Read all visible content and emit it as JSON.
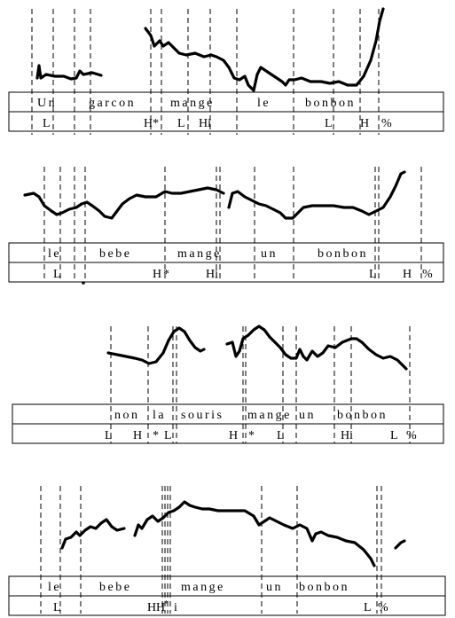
{
  "panels": [
    {
      "words": [
        "Un",
        "garcon",
        "mange",
        "le",
        "bonbon"
      ],
      "tones": [
        "L",
        "H*",
        "L",
        "Hi",
        "L",
        "H",
        "%"
      ]
    },
    {
      "words": [
        "le",
        "bebe",
        "mange",
        "un",
        "bonbon"
      ],
      "tones": [
        "L",
        "H",
        "*",
        "Hi",
        "L",
        "H",
        "%"
      ]
    },
    {
      "words": [
        "non",
        "la",
        "souris",
        "mange",
        "un",
        "bonbon"
      ],
      "tones": [
        "L",
        "H",
        "*",
        "L",
        "H",
        "*",
        "L",
        "Hi",
        "L",
        "%"
      ]
    },
    {
      "words": [
        "le",
        "bebe",
        "mange",
        "un",
        "bonbon"
      ],
      "tones": [
        "L",
        "H",
        "H",
        "*",
        "i",
        "L",
        "%"
      ]
    }
  ]
}
